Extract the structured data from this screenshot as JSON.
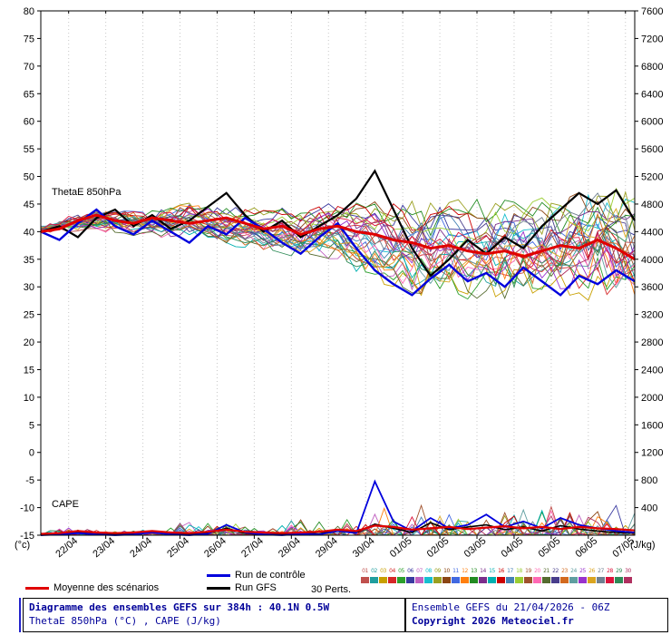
{
  "plot": {
    "thetae_label": "ThetaE 850hPa",
    "cape_label": "CAPE",
    "unit_left": "(°c)",
    "unit_right": "(J/kg)"
  },
  "legend": {
    "mean_label": "Moyenne des scénarios",
    "control_label": "Run de contrôle",
    "gfs_label": "Run GFS",
    "perts_label": "30 Perts.",
    "pert_numbers": [
      "01",
      "02",
      "03",
      "04",
      "05",
      "06",
      "07",
      "08",
      "09",
      "10",
      "11",
      "12",
      "13",
      "14",
      "15",
      "16",
      "17",
      "18",
      "19",
      "20",
      "21",
      "22",
      "23",
      "24",
      "25",
      "26",
      "27",
      "28",
      "29",
      "30"
    ],
    "pert_colors": [
      "#c0504d",
      "#1f9e9e",
      "#c8a000",
      "#d62728",
      "#2ca02c",
      "#3a3aa0",
      "#c060c0",
      "#17becf",
      "#9aa020",
      "#8b4513",
      "#4169e1",
      "#ff7f0e",
      "#228b22",
      "#7b2d8b",
      "#00b0b0",
      "#cc0000",
      "#4682b4",
      "#9acd32",
      "#a0522d",
      "#ff69b4",
      "#556b2f",
      "#483d8b",
      "#d2691e",
      "#5f9ea0",
      "#9932cc",
      "#daa520",
      "#708090",
      "#dc143c",
      "#2e8b57",
      "#b03060"
    ]
  },
  "footer": {
    "title": "Diagramme des ensembles GEFS sur 384h : 40.1N 0.5W",
    "subtitle": "ThetaE 850hPa (°C) , CAPE (J/kg)",
    "run_info": "Ensemble GEFS du 21/04/2026 - 06Z",
    "copyright": "Copyright 2026 Meteociel.fr"
  },
  "colors": {
    "mean": "#e00000",
    "control": "#0000dd",
    "gfs": "#000000",
    "grid": "#c8c8c8",
    "accent_bar": "#2222cc",
    "footer_text": "#000099"
  },
  "chart_data": {
    "type": "line",
    "title": "Diagramme des ensembles GEFS sur 384h : 40.1N 0.5W",
    "x_axis": {
      "run_label": "21/04/2026 06Z",
      "hours": 384,
      "first_day_tick_hour": 18,
      "day_tick_interval": 24,
      "day_labels": [
        "22/04",
        "23/04",
        "24/04",
        "25/04",
        "26/04",
        "27/04",
        "28/04",
        "29/04",
        "30/04",
        "01/05",
        "02/05",
        "03/05",
        "04/05",
        "05/05",
        "06/05",
        "07/05"
      ]
    },
    "y_left_axis": {
      "label": "ThetaE 850hPa (°C)",
      "min": -15,
      "max": 80,
      "tick_step": 5
    },
    "y_right_axis": {
      "label": "CAPE (J/kg)",
      "min": 0,
      "max": 7600,
      "tick_step": 400
    },
    "series_step_hours": 12,
    "thetae": {
      "mean_12h": [
        40,
        40.5,
        42,
        43,
        42,
        41.5,
        42.5,
        42,
        41.5,
        42,
        42.5,
        41.5,
        40.5,
        41,
        39.5,
        40.5,
        41,
        40,
        39.5,
        38.5,
        38,
        37,
        37.5,
        36.5,
        36,
        36.5,
        35.5,
        36.5,
        37.5,
        37,
        38.5,
        37,
        35
      ],
      "control_12h": [
        40,
        38.5,
        41.5,
        44,
        41,
        39.5,
        42,
        40,
        38,
        41,
        39.5,
        42.5,
        40.5,
        38,
        36,
        39,
        41.5,
        37,
        33,
        30.5,
        28.5,
        31.5,
        34,
        31,
        32.5,
        30,
        33.5,
        31,
        28.5,
        32,
        30.5,
        33,
        31
      ],
      "gfs_12h": [
        40,
        41,
        39,
        42.5,
        44,
        41,
        43,
        40.5,
        42,
        44.5,
        47,
        43,
        40,
        42,
        39,
        41,
        43,
        46,
        51,
        44,
        37,
        32,
        35,
        38.5,
        36,
        39,
        37,
        41,
        44,
        47,
        45,
        47.5,
        42
      ],
      "members_envelope": {
        "mean_daily": [
          40.5,
          41.5,
          42,
          41.5,
          42.5,
          41,
          40.5,
          40,
          40.5,
          38.5,
          37,
          37,
          36.5,
          37.5,
          36.5,
          38,
          36.5
        ],
        "spread_daily": [
          1,
          2,
          2.5,
          2.5,
          3,
          3,
          3.5,
          4,
          4.5,
          6.5,
          7.5,
          7.5,
          7.5,
          8,
          8,
          8.5,
          9
        ]
      }
    },
    "cape": {
      "mean_12h": [
        20,
        30,
        60,
        40,
        30,
        40,
        60,
        40,
        30,
        50,
        80,
        50,
        40,
        30,
        40,
        50,
        80,
        60,
        140,
        120,
        80,
        100,
        120,
        90,
        110,
        130,
        100,
        120,
        90,
        120,
        100,
        90,
        70
      ],
      "control_12h": [
        0,
        10,
        30,
        10,
        0,
        10,
        40,
        10,
        0,
        20,
        150,
        40,
        10,
        0,
        20,
        10,
        60,
        30,
        780,
        200,
        60,
        250,
        100,
        150,
        300,
        120,
        200,
        100,
        250,
        150,
        100,
        60,
        40
      ],
      "gfs_12h": [
        0,
        20,
        40,
        20,
        10,
        20,
        50,
        20,
        10,
        30,
        100,
        30,
        10,
        10,
        30,
        20,
        80,
        40,
        160,
        100,
        40,
        180,
        80,
        120,
        150,
        80,
        120,
        60,
        140,
        90,
        60,
        40,
        30
      ],
      "members_spike_daily": [
        20,
        150,
        80,
        60,
        250,
        150,
        80,
        250,
        150,
        400,
        550,
        350,
        300,
        350,
        400,
        380,
        420
      ]
    },
    "members": {
      "count": 30,
      "seed": 7
    }
  }
}
